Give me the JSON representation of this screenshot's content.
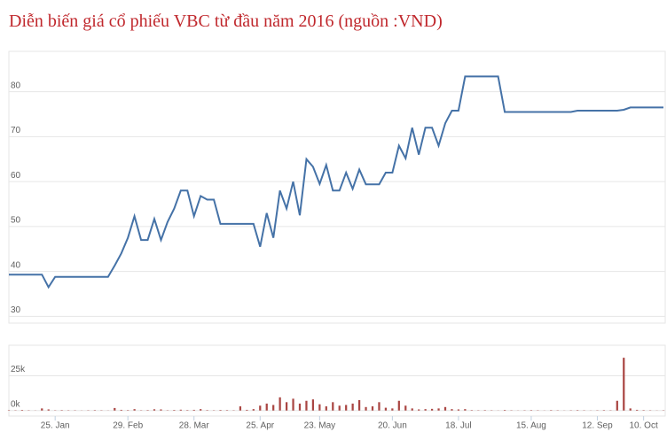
{
  "chart_data": [
    {
      "type": "line",
      "title": "Diễn biến giá cổ phiếu VBC từ đầu năm 2016 (nguồn :VND)",
      "color": "#4572a7",
      "values": [
        39.3,
        39.3,
        39.3,
        39.3,
        39.3,
        39.3,
        36.5,
        38.8,
        38.8,
        38.8,
        38.8,
        38.8,
        38.8,
        38.8,
        38.8,
        38.8,
        41.3,
        44,
        47.5,
        52.3,
        47,
        47,
        51.7,
        47,
        51,
        54,
        58,
        58,
        52.3,
        56.8,
        56,
        56,
        50.6,
        50.6,
        50.6,
        50.6,
        50.6,
        50.6,
        45.5,
        53,
        47.5,
        58,
        54,
        60,
        52.5,
        65,
        63.3,
        59.5,
        63.7,
        58,
        58,
        62,
        58.4,
        62.7,
        59.4,
        59.4,
        59.4,
        62,
        62,
        68,
        65.2,
        72,
        66,
        72,
        72,
        68,
        73,
        75.8,
        75.8,
        83.4,
        83.4,
        83.4,
        83.4,
        83.4,
        83.4,
        75.5,
        75.5,
        75.5,
        75.5,
        75.5,
        75.5,
        75.5,
        75.5,
        75.5,
        75.5,
        75.5,
        75.8,
        75.8,
        75.8,
        75.8,
        75.8,
        75.8,
        75.8,
        76,
        76.5,
        76.5,
        76.5,
        76.5,
        76.5,
        76.5
      ],
      "ylim": [
        28.5,
        89
      ],
      "yticks": [
        30,
        40,
        50,
        60,
        70,
        80
      ],
      "grid": true
    },
    {
      "type": "bar",
      "color": "#aa4643",
      "categories": [
        null,
        null,
        null,
        null,
        null,
        null,
        null,
        "25. Jan",
        null,
        null,
        null,
        null,
        null,
        null,
        null,
        null,
        null,
        null,
        "29. Feb",
        null,
        null,
        null,
        null,
        null,
        null,
        null,
        null,
        null,
        "28. Mar",
        null,
        null,
        null,
        null,
        null,
        null,
        null,
        null,
        null,
        "25. Apr",
        null,
        null,
        null,
        null,
        null,
        null,
        null,
        null,
        "23. May",
        null,
        null,
        null,
        null,
        null,
        null,
        null,
        null,
        null,
        null,
        "20. Jun",
        null,
        null,
        null,
        null,
        null,
        null,
        null,
        null,
        null,
        "18. Jul",
        null,
        null,
        null,
        null,
        null,
        null,
        null,
        null,
        null,
        null,
        "15. Aug",
        null,
        null,
        null,
        null,
        null,
        null,
        null,
        null,
        null,
        "12. Sep",
        null,
        null,
        null,
        null,
        null,
        null,
        "10. Oct",
        null,
        null,
        null
      ],
      "values": [
        300,
        200,
        400,
        200,
        100,
        1500,
        800,
        200,
        300,
        200,
        200,
        100,
        200,
        300,
        200,
        100,
        1800,
        500,
        300,
        1000,
        200,
        300,
        900,
        800,
        200,
        400,
        600,
        300,
        500,
        1000,
        300,
        200,
        400,
        300,
        200,
        3000,
        500,
        1000,
        3500,
        5000,
        4000,
        9500,
        6000,
        8500,
        5000,
        7000,
        8000,
        4500,
        3000,
        6000,
        3500,
        4000,
        5000,
        7500,
        2500,
        3000,
        6000,
        2000,
        1500,
        7000,
        3500,
        1500,
        800,
        1000,
        1200,
        1500,
        2500,
        1000,
        800,
        1000,
        300,
        200,
        300,
        200,
        100,
        400,
        200,
        100,
        200,
        300,
        200,
        100,
        300,
        200,
        100,
        200,
        300,
        200,
        100,
        200,
        300,
        200,
        7000,
        38000,
        1500,
        500,
        300,
        200,
        100,
        200
      ],
      "ylim": [
        -4000,
        47000
      ],
      "yticks": [
        {
          "value": 0,
          "label": "0k"
        },
        {
          "value": 25000,
          "label": "25k"
        }
      ],
      "grid": true
    }
  ]
}
